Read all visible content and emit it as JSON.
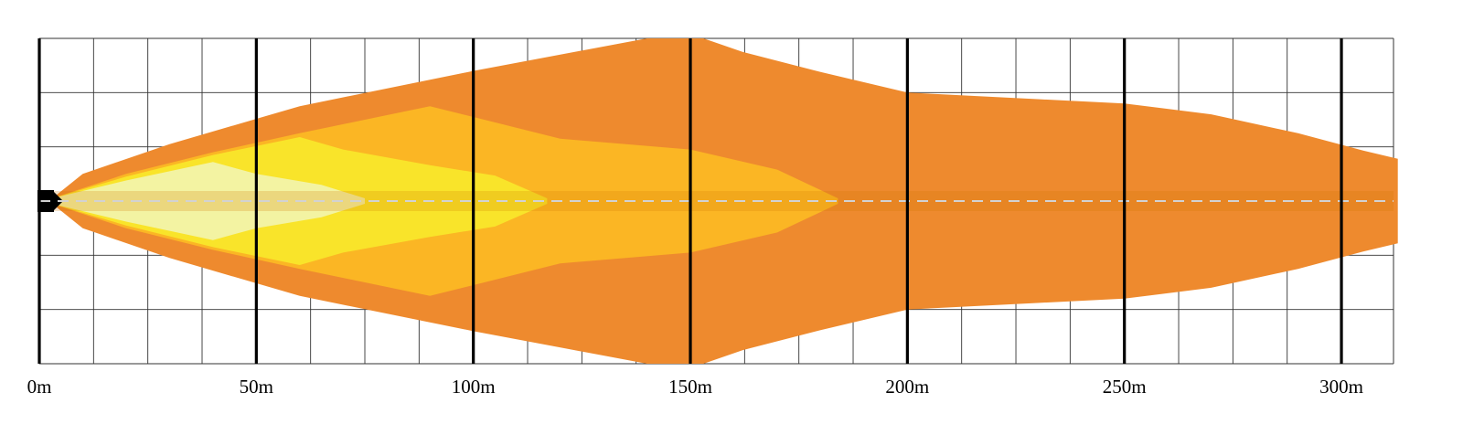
{
  "chart_data": {
    "type": "area",
    "title": "",
    "xlabel": "",
    "ylabel": "",
    "x_unit": "m",
    "xlim": [
      0,
      312
    ],
    "ylim": [
      -3,
      3
    ],
    "grid": true,
    "major_ticks": [
      0,
      50,
      100,
      150,
      200,
      250,
      300
    ],
    "tick_labels": [
      "0m",
      "50m",
      "100m",
      "150m",
      "200m",
      "250m",
      "300m"
    ],
    "zones": [
      {
        "reach_m": 313,
        "color": "#ee8a2e",
        "upper": [
          [
            3,
            0.05
          ],
          [
            10,
            0.5
          ],
          [
            30,
            1.05
          ],
          [
            60,
            1.75
          ],
          [
            100,
            2.4
          ],
          [
            140,
            3.0
          ],
          [
            153,
            3.0
          ],
          [
            162,
            2.75
          ],
          [
            180,
            2.38
          ],
          [
            200,
            2.0
          ],
          [
            230,
            1.88
          ],
          [
            250,
            1.8
          ],
          [
            270,
            1.6
          ],
          [
            290,
            1.25
          ],
          [
            305,
            0.93
          ],
          [
            313,
            0.78
          ]
        ]
      },
      {
        "reach_m": 184,
        "color": "#fbb624",
        "upper": [
          [
            3,
            0.05
          ],
          [
            20,
            0.5
          ],
          [
            40,
            0.9
          ],
          [
            60,
            1.25
          ],
          [
            90,
            1.75
          ],
          [
            100,
            1.55
          ],
          [
            120,
            1.15
          ],
          [
            150,
            0.95
          ],
          [
            170,
            0.58
          ],
          [
            184,
            0.05
          ]
        ]
      },
      {
        "reach_m": 117,
        "color": "#f9e42a",
        "upper": [
          [
            3,
            0.05
          ],
          [
            20,
            0.45
          ],
          [
            40,
            0.85
          ],
          [
            60,
            1.18
          ],
          [
            70,
            0.95
          ],
          [
            90,
            0.66
          ],
          [
            105,
            0.47
          ],
          [
            117,
            0.05
          ]
        ]
      },
      {
        "reach_m": 75,
        "color": "#f3f3a2",
        "upper": [
          [
            3,
            0.05
          ],
          [
            20,
            0.38
          ],
          [
            40,
            0.72
          ],
          [
            50,
            0.5
          ],
          [
            65,
            0.3
          ],
          [
            75,
            0.05
          ]
        ]
      }
    ],
    "centerline_color": "#d2d2d2"
  }
}
